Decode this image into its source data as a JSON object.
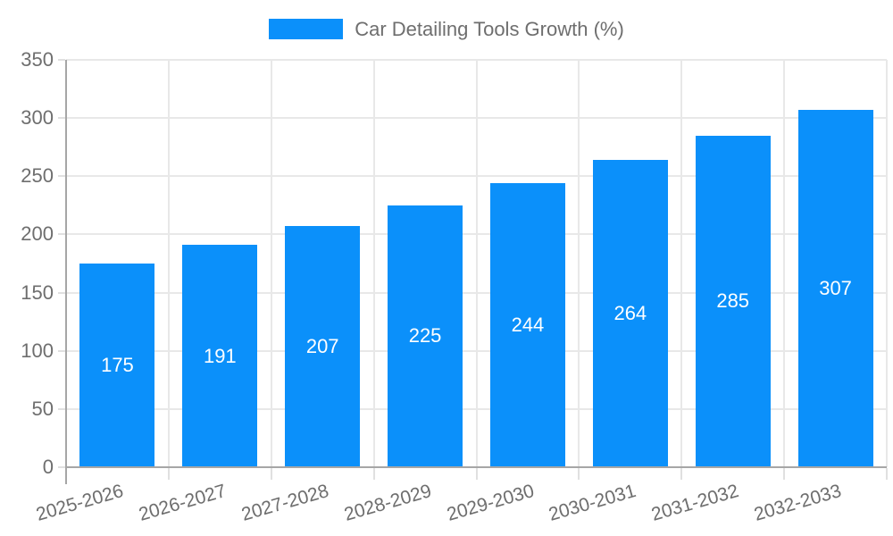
{
  "chart_data": {
    "type": "bar",
    "title": "Car Detailing Tools Growth (%)",
    "categories": [
      "2025-2026",
      "2026-2027",
      "2027-2028",
      "2028-2029",
      "2029-2030",
      "2030-2031",
      "2031-2032",
      "2032-2033"
    ],
    "values": [
      175,
      191,
      207,
      225,
      244,
      264,
      285,
      307
    ],
    "yticks": [
      0,
      50,
      100,
      150,
      200,
      250,
      300,
      350
    ],
    "ylim": [
      0,
      350
    ],
    "ytick_step": 50,
    "xlabel": "",
    "ylabel": "",
    "grid": true,
    "legend_position": "top-center",
    "bar_color": "#0b90fa",
    "bar_label_color": "#ffffff",
    "axis_text_color": "#6e6e6e",
    "grid_color": "#e8e8e8",
    "tick_color": "#e0e0e0",
    "axis_line_color": "#a6a6a6"
  }
}
